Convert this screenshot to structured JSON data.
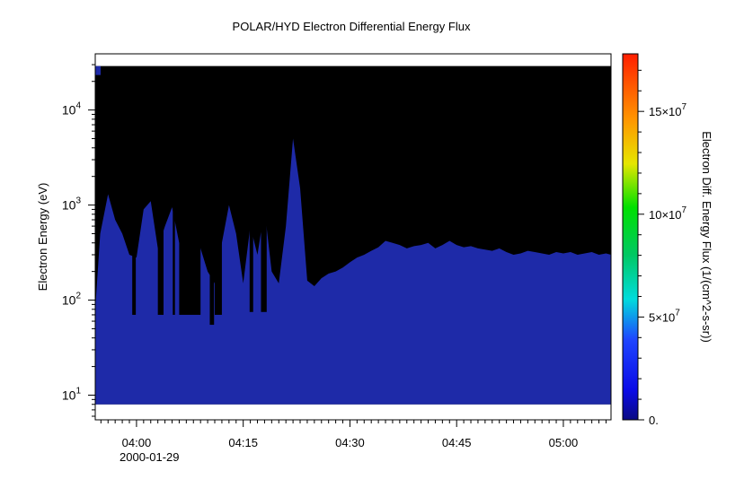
{
  "chart_data": {
    "type": "heatmap",
    "title": "POLAR/HYD  Electron Differential Energy Flux",
    "xlabel": "",
    "ylabel": "Electron Energy (eV)",
    "zlabel": "Electron Diff. Energy Flux (1/(cm^2-s-sr))",
    "date_label": "2000-01-29",
    "x_ticks": [
      "04:00",
      "04:15",
      "04:30",
      "04:45",
      "05:00"
    ],
    "x_tick_values_min": [
      240,
      255,
      270,
      285,
      300
    ],
    "xlim_min": [
      234.2,
      306.7
    ],
    "y_scale": "log",
    "ylim": [
      5.5,
      39000
    ],
    "y_ticks": [
      {
        "value": 10,
        "base": "10",
        "exp": "1"
      },
      {
        "value": 100,
        "base": "10",
        "exp": "2"
      },
      {
        "value": 1000,
        "base": "10",
        "exp": "3"
      },
      {
        "value": 10000,
        "base": "10",
        "exp": "4"
      }
    ],
    "data_energy_range_eV": [
      8,
      29000
    ],
    "colorbar": {
      "range": [
        0,
        178000000
      ],
      "ticks": [
        {
          "value": 0,
          "label": "0."
        },
        {
          "value": 50000000,
          "label": "5×10",
          "exp": "7"
        },
        {
          "value": 100000000,
          "label": "10×10",
          "exp": "7"
        },
        {
          "value": 150000000,
          "label": "15×10",
          "exp": "7"
        }
      ]
    },
    "fill_color_no_data": "#000000",
    "fill_color_low_flux": "#1e2aa8",
    "upper_boundary_eV": {
      "time_min": [
        234.2,
        234.9,
        236.0,
        237.0,
        238.0,
        239.0,
        240.0,
        241.0,
        242.0,
        243.0,
        244.0,
        245.0,
        246.0,
        247.0,
        248.0,
        249.0,
        250.0,
        251.0,
        252.0,
        253.0,
        254.0,
        255.0,
        256.0,
        257.0,
        258.0,
        259.0,
        260.0,
        261.0,
        262.0,
        263.0,
        264.0,
        265.0,
        266.0,
        267.0,
        268.0,
        269.0,
        270.0,
        271.0,
        272.0,
        273.0,
        274.0,
        275.0,
        276.0,
        277.0,
        278.0,
        279.0,
        280.0,
        281.0,
        282.0,
        283.0,
        284.0,
        285.0,
        286.0,
        287.0,
        288.0,
        289.0,
        290.0,
        291.0,
        292.0,
        293.0,
        294.0,
        295.0,
        296.0,
        297.0,
        298.0,
        299.0,
        300.0,
        301.0,
        302.0,
        303.0,
        304.0,
        305.0,
        306.0,
        306.7
      ],
      "energy_eV": [
        80,
        500,
        1300,
        700,
        500,
        300,
        280,
        900,
        1100,
        350,
        600,
        950,
        400,
        300,
        850,
        350,
        200,
        150,
        400,
        1000,
        500,
        150,
        600,
        300,
        900,
        200,
        150,
        600,
        5000,
        1500,
        160,
        140,
        170,
        190,
        200,
        220,
        250,
        280,
        300,
        330,
        360,
        420,
        400,
        380,
        350,
        370,
        380,
        400,
        350,
        380,
        420,
        380,
        360,
        370,
        350,
        340,
        330,
        350,
        320,
        300,
        310,
        330,
        320,
        310,
        300,
        320,
        310,
        320,
        300,
        310,
        320,
        300,
        310,
        300
      ],
      "lower_black_notch": [
        {
          "time_min": [
            239.4,
            239.9
          ],
          "energy_eV": 70
        },
        {
          "time_min": [
            243.0,
            243.8
          ],
          "energy_eV": 70
        },
        {
          "time_min": [
            245.1,
            245.4
          ],
          "energy_eV": 70
        },
        {
          "time_min": [
            246.0,
            249.0
          ],
          "energy_eV": 70
        },
        {
          "time_min": [
            250.3,
            250.9
          ],
          "energy_eV": 55
        },
        {
          "time_min": [
            251.0,
            252.0
          ],
          "energy_eV": 70
        },
        {
          "time_min": [
            255.9,
            256.4
          ],
          "energy_eV": 75
        },
        {
          "time_min": [
            257.5,
            258.3
          ],
          "energy_eV": 75
        }
      ]
    }
  }
}
